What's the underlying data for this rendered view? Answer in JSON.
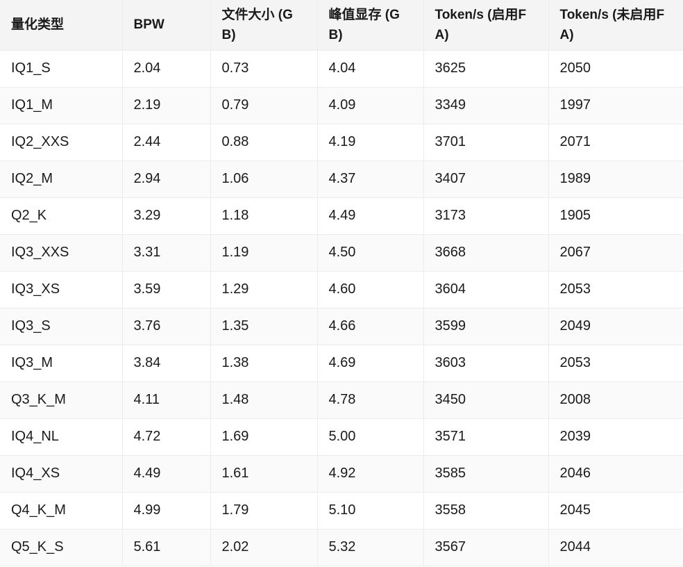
{
  "table": {
    "header": [
      "量化类型",
      "BPW",
      "文件大小 (GB)",
      "峰值显存 (GB)",
      "Token/s (启用FA)",
      "Token/s (未启用FA)"
    ],
    "rows": [
      [
        "IQ1_S",
        "2.04",
        "0.73",
        "4.04",
        "3625",
        "2050"
      ],
      [
        "IQ1_M",
        "2.19",
        "0.79",
        "4.09",
        "3349",
        "1997"
      ],
      [
        "IQ2_XXS",
        "2.44",
        "0.88",
        "4.19",
        "3701",
        "2071"
      ],
      [
        "IQ2_M",
        "2.94",
        "1.06",
        "4.37",
        "3407",
        "1989"
      ],
      [
        "Q2_K",
        "3.29",
        "1.18",
        "4.49",
        "3173",
        "1905"
      ],
      [
        "IQ3_XXS",
        "3.31",
        "1.19",
        "4.50",
        "3668",
        "2067"
      ],
      [
        "IQ3_XS",
        "3.59",
        "1.29",
        "4.60",
        "3604",
        "2053"
      ],
      [
        "IQ3_S",
        "3.76",
        "1.35",
        "4.66",
        "3599",
        "2049"
      ],
      [
        "IQ3_M",
        "3.84",
        "1.38",
        "4.69",
        "3603",
        "2053"
      ],
      [
        "Q3_K_M",
        "4.11",
        "1.48",
        "4.78",
        "3450",
        "2008"
      ],
      [
        "IQ4_NL",
        "4.72",
        "1.69",
        "5.00",
        "3571",
        "2039"
      ],
      [
        "IQ4_XS",
        "4.49",
        "1.61",
        "4.92",
        "3585",
        "2046"
      ],
      [
        "Q4_K_M",
        "4.99",
        "1.79",
        "5.10",
        "3558",
        "2045"
      ],
      [
        "Q5_K_S",
        "5.61",
        "2.02",
        "5.32",
        "3567",
        "2044"
      ]
    ]
  }
}
